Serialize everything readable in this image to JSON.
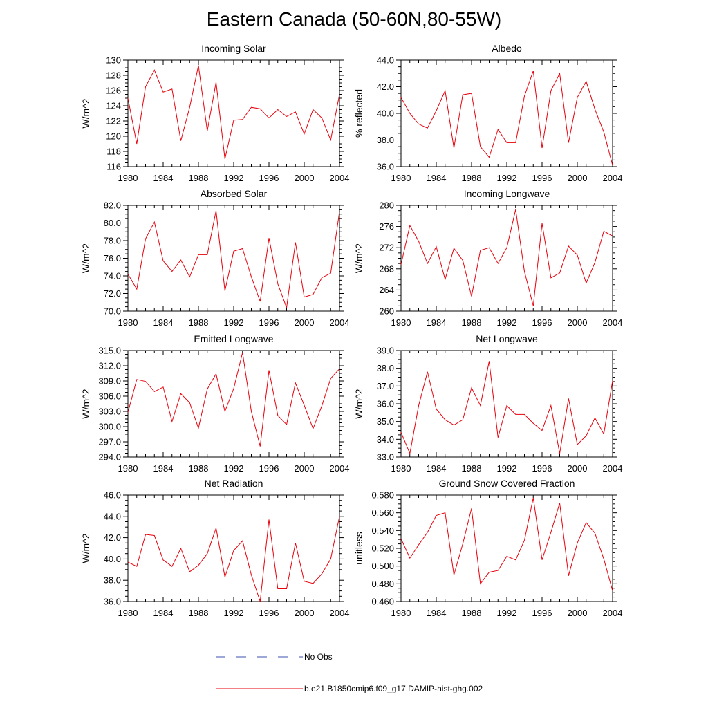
{
  "title": "Eastern Canada (50-60N,80-55W)",
  "colors": {
    "model": "#e8000b",
    "obs": "#3b4fb0",
    "axis": "#000000"
  },
  "legend": {
    "obs_label": "No Obs",
    "model_label": "b.e21.B1850cmip6.f09_g17.DAMIP-hist-ghg.002"
  },
  "chart_data": [
    {
      "type": "line",
      "title": "Incoming Solar",
      "ylabel": "W/m^2",
      "xlim": [
        1980,
        2004
      ],
      "ylim": [
        116,
        130
      ],
      "xticks": [
        1980,
        1984,
        1988,
        1992,
        1996,
        2000,
        2004
      ],
      "yticks": [
        "116",
        "118",
        "120",
        "122",
        "124",
        "126",
        "128",
        "130"
      ],
      "x": [
        1980,
        1981,
        1982,
        1983,
        1984,
        1985,
        1986,
        1987,
        1988,
        1989,
        1990,
        1991,
        1992,
        1993,
        1994,
        1995,
        1996,
        1997,
        1998,
        1999,
        2000,
        2001,
        2002,
        2003,
        2004
      ],
      "values": [
        125.0,
        119.0,
        126.5,
        128.7,
        125.8,
        126.2,
        119.4,
        123.8,
        129.3,
        120.7,
        127.1,
        117.0,
        122.1,
        122.2,
        123.8,
        123.6,
        122.4,
        123.5,
        122.6,
        123.2,
        120.3,
        123.5,
        122.4,
        119.5,
        125.5
      ]
    },
    {
      "type": "line",
      "title": "Albedo",
      "ylabel": "% reflected",
      "xlim": [
        1980,
        2004
      ],
      "ylim": [
        36,
        44
      ],
      "xticks": [
        1980,
        1984,
        1988,
        1992,
        1996,
        2000,
        2004
      ],
      "yticks": [
        "36.0",
        "38.0",
        "40.0",
        "42.0",
        "44.0"
      ],
      "x": [
        1980,
        1981,
        1982,
        1983,
        1984,
        1985,
        1986,
        1987,
        1988,
        1989,
        1990,
        1991,
        1992,
        1993,
        1994,
        1995,
        1996,
        1997,
        1998,
        1999,
        2000,
        2001,
        2002,
        2003,
        2004
      ],
      "values": [
        41.2,
        40.0,
        39.2,
        38.9,
        40.2,
        41.7,
        37.4,
        41.4,
        41.5,
        37.5,
        36.7,
        38.8,
        37.8,
        37.8,
        41.3,
        43.2,
        37.4,
        41.7,
        43.0,
        37.8,
        41.2,
        42.4,
        40.3,
        38.6,
        36.1
      ]
    },
    {
      "type": "line",
      "title": "Absorbed Solar",
      "ylabel": "W/m^2",
      "xlim": [
        1980,
        2004
      ],
      "ylim": [
        70,
        82
      ],
      "xticks": [
        1980,
        1984,
        1988,
        1992,
        1996,
        2000,
        2004
      ],
      "yticks": [
        "70.0",
        "72.0",
        "74.0",
        "76.0",
        "78.0",
        "80.0",
        "82.0"
      ],
      "x": [
        1980,
        1981,
        1982,
        1983,
        1984,
        1985,
        1986,
        1987,
        1988,
        1989,
        1990,
        1991,
        1992,
        1993,
        1994,
        1995,
        1996,
        1997,
        1998,
        1999,
        2000,
        2001,
        2002,
        2003,
        2004
      ],
      "values": [
        74.2,
        72.5,
        78.2,
        80.1,
        75.7,
        74.5,
        75.8,
        73.9,
        76.4,
        76.4,
        81.4,
        72.3,
        76.8,
        77.1,
        73.9,
        71.1,
        78.3,
        73.1,
        70.4,
        77.8,
        71.6,
        71.9,
        73.8,
        74.3,
        81.3
      ]
    },
    {
      "type": "line",
      "title": "Incoming Longwave",
      "ylabel": "W/m^2",
      "xlim": [
        1980,
        2004
      ],
      "ylim": [
        260,
        280
      ],
      "xticks": [
        1980,
        1984,
        1988,
        1992,
        1996,
        2000,
        2004
      ],
      "yticks": [
        "260",
        "264",
        "268",
        "272",
        "276",
        "280"
      ],
      "x": [
        1980,
        1981,
        1982,
        1983,
        1984,
        1985,
        1986,
        1987,
        1988,
        1989,
        1990,
        1991,
        1992,
        1993,
        1994,
        1995,
        1996,
        1997,
        1998,
        1999,
        2000,
        2001,
        2002,
        2003,
        2004
      ],
      "values": [
        268.8,
        276.2,
        273.2,
        269.0,
        272.2,
        266.0,
        271.9,
        269.6,
        262.8,
        271.5,
        272.0,
        269.0,
        272.0,
        279.2,
        267.5,
        261.0,
        276.6,
        266.3,
        267.2,
        272.3,
        270.6,
        265.3,
        269.2,
        275.1,
        274.2
      ]
    },
    {
      "type": "line",
      "title": "Emitted Longwave",
      "ylabel": "W/m^2",
      "xlim": [
        1980,
        2004
      ],
      "ylim": [
        294,
        315
      ],
      "xticks": [
        1980,
        1984,
        1988,
        1992,
        1996,
        2000,
        2004
      ],
      "yticks": [
        "294.0",
        "297.0",
        "300.0",
        "303.0",
        "306.0",
        "309.0",
        "312.0",
        "315.0"
      ],
      "x": [
        1980,
        1981,
        1982,
        1983,
        1984,
        1985,
        1986,
        1987,
        1988,
        1989,
        1990,
        1991,
        1992,
        1993,
        1994,
        1995,
        1996,
        1997,
        1998,
        1999,
        2000,
        2001,
        2002,
        2003,
        2004
      ],
      "values": [
        302.8,
        309.3,
        308.9,
        306.9,
        307.8,
        301.0,
        306.5,
        304.7,
        299.7,
        307.4,
        310.4,
        303.0,
        307.5,
        314.6,
        303.0,
        296.1,
        311.1,
        302.2,
        300.4,
        308.6,
        304.2,
        299.6,
        304.1,
        309.5,
        311.4
      ]
    },
    {
      "type": "line",
      "title": "Net Longwave",
      "ylabel": "W/m^2",
      "xlim": [
        1980,
        2004
      ],
      "ylim": [
        33,
        39
      ],
      "xticks": [
        1980,
        1984,
        1988,
        1992,
        1996,
        2000,
        2004
      ],
      "yticks": [
        "33.0",
        "34.0",
        "35.0",
        "36.0",
        "37.0",
        "38.0",
        "39.0"
      ],
      "x": [
        1980,
        1981,
        1982,
        1983,
        1984,
        1985,
        1986,
        1987,
        1988,
        1989,
        1990,
        1991,
        1992,
        1993,
        1994,
        1995,
        1996,
        1997,
        1998,
        1999,
        2000,
        2001,
        2002,
        2003,
        2004
      ],
      "values": [
        34.4,
        33.2,
        35.9,
        37.8,
        35.7,
        35.1,
        34.8,
        35.1,
        36.9,
        35.9,
        38.4,
        34.1,
        35.9,
        35.4,
        35.4,
        34.9,
        34.5,
        35.9,
        33.2,
        36.3,
        33.7,
        34.2,
        35.2,
        34.3,
        37.3
      ]
    },
    {
      "type": "line",
      "title": "Net Radiation",
      "ylabel": "W/m^2",
      "xlim": [
        1980,
        2004
      ],
      "ylim": [
        36,
        46
      ],
      "xticks": [
        1980,
        1984,
        1988,
        1992,
        1996,
        2000,
        2004
      ],
      "yticks": [
        "36.0",
        "38.0",
        "40.0",
        "42.0",
        "44.0",
        "46.0"
      ],
      "x": [
        1980,
        1981,
        1982,
        1983,
        1984,
        1985,
        1986,
        1987,
        1988,
        1989,
        1990,
        1991,
        1992,
        1993,
        1994,
        1995,
        1996,
        1997,
        1998,
        1999,
        2000,
        2001,
        2002,
        2003,
        2004
      ],
      "values": [
        39.7,
        39.3,
        42.3,
        42.2,
        39.9,
        39.3,
        41.0,
        38.8,
        39.4,
        40.5,
        42.9,
        38.3,
        40.8,
        41.7,
        38.5,
        36.0,
        43.7,
        37.2,
        37.2,
        41.5,
        37.9,
        37.7,
        38.6,
        40.0,
        44.0
      ]
    },
    {
      "type": "line",
      "title": "Ground Snow Covered Fraction",
      "ylabel": "unitless",
      "xlim": [
        1980,
        2004
      ],
      "ylim": [
        0.46,
        0.58
      ],
      "xticks": [
        1980,
        1984,
        1988,
        1992,
        1996,
        2000,
        2004
      ],
      "yticks": [
        "0.460",
        "0.480",
        "0.500",
        "0.520",
        "0.540",
        "0.560",
        "0.580"
      ],
      "x": [
        1980,
        1981,
        1982,
        1983,
        1984,
        1985,
        1986,
        1987,
        1988,
        1989,
        1990,
        1991,
        1992,
        1993,
        1994,
        1995,
        1996,
        1997,
        1998,
        1999,
        2000,
        2001,
        2002,
        2003,
        2004
      ],
      "values": [
        0.531,
        0.509,
        0.524,
        0.538,
        0.557,
        0.56,
        0.49,
        0.525,
        0.565,
        0.48,
        0.493,
        0.495,
        0.511,
        0.507,
        0.529,
        0.577,
        0.507,
        0.538,
        0.571,
        0.489,
        0.526,
        0.549,
        0.537,
        0.508,
        0.472
      ]
    }
  ]
}
